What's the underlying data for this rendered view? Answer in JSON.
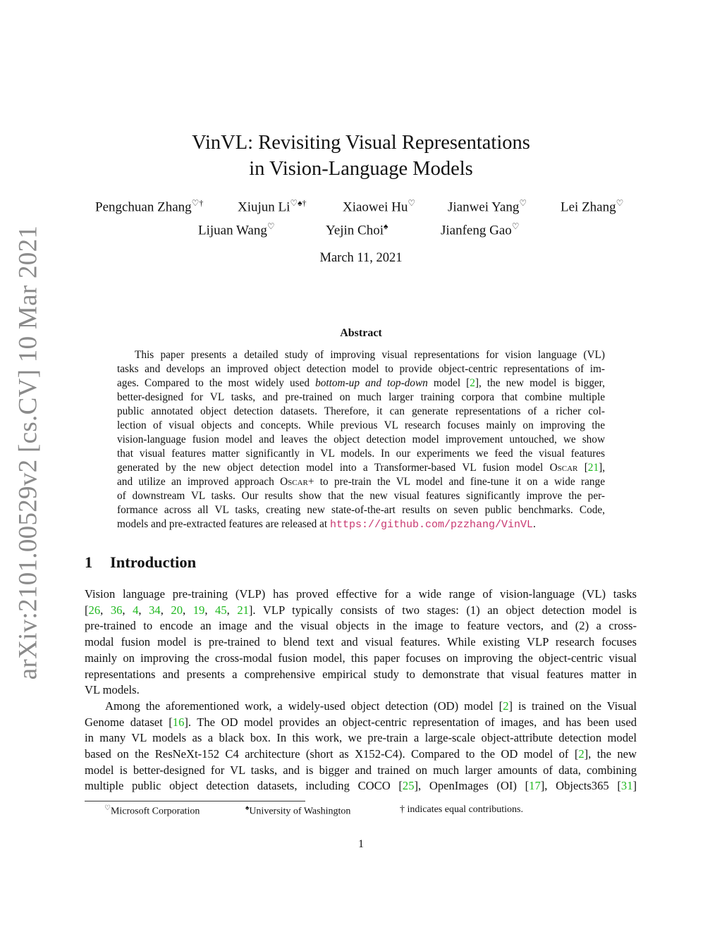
{
  "arxiv_stamp": "arXiv:2101.00529v2  [cs.CV]  10 Mar 2021",
  "title": [
    "VinVL: Revisiting Visual Representations",
    "in Vision-Language Models"
  ],
  "authors": [
    {
      "name": "Pengchuan Zhang",
      "marks": "♡†"
    },
    {
      "name": "Xiujun Li",
      "marks": "♡♠†"
    },
    {
      "name": "Xiaowei Hu",
      "marks": "♡"
    },
    {
      "name": "Jianwei Yang",
      "marks": "♡"
    },
    {
      "name": "Lei Zhang",
      "marks": "♡"
    },
    {
      "name": "Lijuan Wang",
      "marks": "♡"
    },
    {
      "name": "Yejin Choi",
      "marks": "♠"
    },
    {
      "name": "Jianfeng Gao",
      "marks": "♡"
    }
  ],
  "date": "March 11, 2021",
  "abstract": {
    "heading": "Abstract",
    "lines": [
      [
        "This paper presents a detailed study of improving visual representations for vision language (VL)"
      ],
      [
        "tasks and develops an improved object detection model to provide object-centric representations of im-"
      ],
      [
        "ages. Compared to the most widely used ",
        {
          "t": "bottom-up and top-down",
          "k": "em"
        },
        " model [",
        {
          "t": "2",
          "k": "cite"
        },
        "], the new model is bigger,"
      ],
      [
        "better-designed for VL tasks, and pre-trained on much larger training corpora that combine multiple"
      ],
      [
        "public annotated object detection datasets. Therefore, it can generate representations of a richer col-"
      ],
      [
        "lection of visual objects and concepts. While previous VL research focuses mainly on improving the"
      ],
      [
        "vision-language fusion model and leaves the object detection model improvement untouched, we show"
      ],
      [
        "that visual features matter significantly in VL models. In our experiments we feed the visual features"
      ],
      [
        "generated by the new object detection model into a Transformer-based VL fusion model ",
        {
          "t": "Oscar",
          "k": "sc"
        },
        " [",
        {
          "t": "21",
          "k": "cite"
        },
        "],"
      ],
      [
        "and utilize an improved approach ",
        {
          "t": "Oscar+",
          "k": "sc"
        },
        " to pre-train the VL model and fine-tune it on a wide range"
      ],
      [
        "of downstream VL tasks. Our results show that the new visual features significantly improve the per-"
      ],
      [
        "formance across all VL tasks, creating new state-of-the-art results on seven public benchmarks. Code,"
      ],
      [
        "models and pre-extracted features are released at ",
        {
          "t": "https://github.com/pzzhang/VinVL",
          "k": "url"
        },
        "."
      ]
    ]
  },
  "section": {
    "number": "1",
    "title": "Introduction"
  },
  "intro": {
    "paragraphs": [
      [
        [
          "Vision language pre-training (VLP) has proved effective for a wide range of vision-language (VL) tasks"
        ],
        [
          "[",
          {
            "t": "26",
            "k": "cite"
          },
          ", ",
          {
            "t": "36",
            "k": "cite"
          },
          ", ",
          {
            "t": "4",
            "k": "cite"
          },
          ", ",
          {
            "t": "34",
            "k": "cite"
          },
          ", ",
          {
            "t": "20",
            "k": "cite"
          },
          ", ",
          {
            "t": "19",
            "k": "cite"
          },
          ", ",
          {
            "t": "45",
            "k": "cite"
          },
          ", ",
          {
            "t": "21",
            "k": "cite"
          },
          "].  VLP typically consists of two stages: (1) an object detection model is"
        ],
        [
          "pre-trained to encode an image and the visual objects in the image to feature vectors, and (2) a cross-"
        ],
        [
          "modal fusion model is pre-trained to blend text and visual features. While existing VLP research focuses"
        ],
        [
          "mainly on improving the cross-modal fusion model, this paper focuses on improving the object-centric visual"
        ],
        [
          "representations and presents a comprehensive empirical study to demonstrate that visual features matter in"
        ],
        [
          "VL models."
        ]
      ],
      [
        [
          "Among the aforementioned work, a widely-used object detection (OD) model [",
          {
            "t": "2",
            "k": "cite"
          },
          "] is trained on the Visual"
        ],
        [
          "Genome dataset [",
          {
            "t": "16",
            "k": "cite"
          },
          "]. The OD model provides an object-centric representation of images, and has been used"
        ],
        [
          "in many VL models as a black box. In this work, we pre-train a large-scale object-attribute detection model"
        ],
        [
          "based on the ResNeXt-152 C4 architecture (short as X152-C4). Compared to the OD model of  [",
          {
            "t": "2",
            "k": "cite"
          },
          "], the new"
        ],
        [
          "model is better-designed for VL tasks, and is bigger and trained on much larger amounts of data, combining"
        ],
        [
          "multiple public object detection datasets, including COCO [",
          {
            "t": "25",
            "k": "cite"
          },
          "], OpenImages (OI) [",
          {
            "t": "17",
            "k": "cite"
          },
          "], Objects365 [",
          {
            "t": "31",
            "k": "cite"
          },
          "]"
        ]
      ]
    ]
  },
  "footnotes": [
    {
      "mark": "♡",
      "text": "Microsoft Corporation"
    },
    {
      "mark": "♠",
      "text": "University of Washington"
    },
    {
      "mark": "",
      "text": "† indicates equal contributions."
    }
  ],
  "page_number": "1",
  "colors": {
    "cite": "#1fb81f",
    "url": "#c8366f",
    "stamp": "#8a8a8a"
  }
}
